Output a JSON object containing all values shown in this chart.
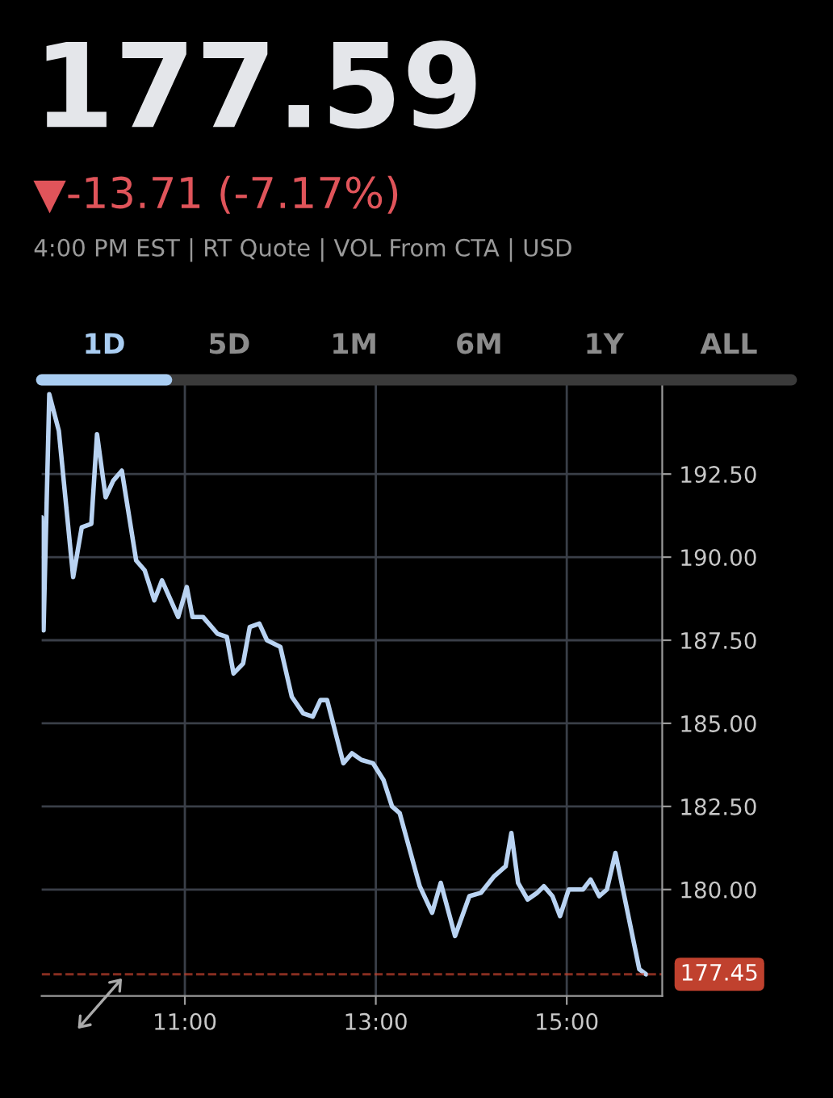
{
  "chart_data": {
    "type": "line",
    "title": "177.59",
    "subtitle": "▼-13.71 (-7.17%)",
    "annotations": [
      "4:00 PM EST | RT Quote | VOL From CTA | USD",
      "1D",
      "5D",
      "1M",
      "6M",
      "1Y",
      "ALL"
    ],
    "series": [
      {
        "color": "#b9d3f2",
        "x": [
          9.5,
          9.52,
          9.58,
          9.68,
          9.83,
          9.92,
          10.02,
          10.08,
          10.17,
          10.25,
          10.34,
          10.49,
          10.58,
          10.68,
          10.76,
          10.93,
          11.02,
          11.08,
          11.19,
          11.34,
          11.44,
          11.51,
          11.61,
          11.68,
          11.78,
          11.86,
          12.0,
          12.12,
          12.24,
          12.34,
          12.42,
          12.49,
          12.66,
          12.75,
          12.85,
          12.97,
          13.08,
          13.17,
          13.25,
          13.46,
          13.59,
          13.68,
          13.83,
          13.98,
          14.1,
          14.24,
          14.36,
          14.42,
          14.49,
          14.59,
          14.69,
          14.76,
          14.85,
          14.93,
          15.02,
          15.17,
          15.25,
          15.34,
          15.42,
          15.51,
          15.76,
          15.83
        ],
        "values": [
          191.2,
          187.8,
          194.9,
          193.8,
          189.4,
          190.9,
          191.0,
          193.7,
          191.8,
          192.3,
          192.6,
          189.9,
          189.6,
          188.7,
          189.3,
          188.2,
          189.1,
          188.2,
          188.2,
          187.7,
          187.6,
          186.5,
          186.8,
          187.9,
          188.0,
          187.5,
          187.3,
          185.8,
          185.3,
          185.2,
          185.7,
          185.7,
          183.8,
          184.1,
          183.9,
          183.8,
          183.3,
          182.5,
          182.3,
          180.1,
          179.3,
          180.2,
          178.6,
          179.8,
          179.9,
          180.4,
          180.7,
          181.7,
          180.2,
          179.7,
          179.9,
          180.1,
          179.8,
          179.2,
          180.0,
          180.0,
          180.3,
          179.8,
          180.0,
          181.1,
          177.6,
          177.45
        ]
      }
    ],
    "xlim": [
      9.5,
      16.0
    ],
    "xticks": [
      {
        "value": 11,
        "label": "11:00"
      },
      {
        "value": 13,
        "label": "13:00"
      },
      {
        "value": 15,
        "label": "15:00"
      }
    ],
    "ylim": [
      176.8,
      195.2
    ],
    "yticks": [
      {
        "value": 180,
        "label": "180.00"
      },
      {
        "value": 182.5,
        "label": "182.50"
      },
      {
        "value": 185,
        "label": "185.00"
      },
      {
        "value": 187.5,
        "label": "187.50"
      },
      {
        "value": 190,
        "label": "190.00"
      },
      {
        "value": 192.5,
        "label": "192.50"
      }
    ],
    "ref_lines": [
      {
        "axis": "y",
        "value": 177.45,
        "label": "177.45",
        "color": "#c0412e",
        "line_style": "dashed"
      }
    ],
    "grid": true,
    "marker": "none",
    "line_style": "solid",
    "legend": false
  }
}
